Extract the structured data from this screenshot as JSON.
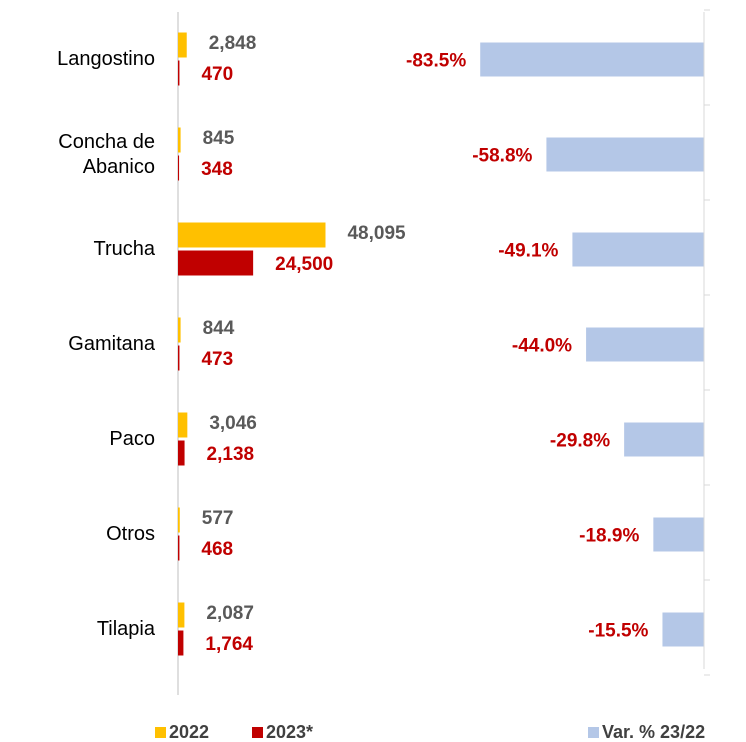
{
  "chart_data": [
    {
      "type": "bar",
      "orientation": "horizontal",
      "categories": [
        "Langostino",
        "Concha de Abanico",
        "Trucha",
        "Gamitana",
        "Paco",
        "Otros",
        "Tilapia"
      ],
      "series": [
        {
          "name": "2022",
          "color": "#ffc000",
          "label_color": "#595959",
          "values": [
            2848,
            845,
            48095,
            844,
            3046,
            577,
            2087
          ],
          "value_labels": [
            "2,848",
            "845",
            "48,095",
            "844",
            "3,046",
            "577",
            "2,087"
          ]
        },
        {
          "name": "2023*",
          "color": "#c00000",
          "label_color": "#c00000",
          "values": [
            470,
            348,
            24500,
            473,
            2138,
            468,
            1764
          ],
          "value_labels": [
            "470",
            "348",
            "24,500",
            "473",
            "2,138",
            "468",
            "1,764"
          ]
        }
      ],
      "xlim": [
        0,
        60000
      ],
      "legend": "bottom"
    },
    {
      "type": "bar",
      "orientation": "horizontal",
      "series": [
        {
          "name": "Var. % 23/22",
          "color": "#b4c7e7",
          "label_color": "#c00000",
          "values": [
            -83.5,
            -58.8,
            -49.1,
            -44.0,
            -29.8,
            -18.9,
            -15.5
          ],
          "value_labels": [
            "-83.5%",
            "-58.8%",
            "-49.1%",
            "-44.0%",
            "-29.8%",
            "-18.9%",
            "-15.5%"
          ]
        }
      ],
      "xlim": [
        -100,
        0
      ],
      "legend": "bottom"
    }
  ]
}
